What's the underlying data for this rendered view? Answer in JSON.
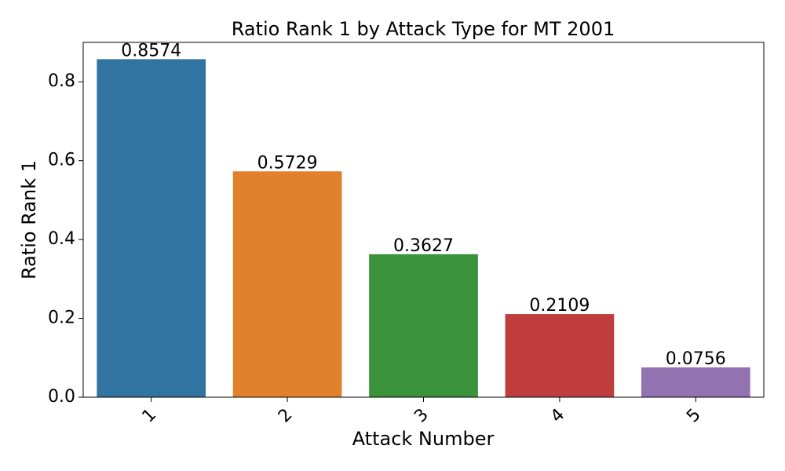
{
  "chart_data": {
    "type": "bar",
    "title": "Ratio Rank 1 by Attack Type for MT 2001",
    "xlabel": "Attack Number",
    "ylabel": "Ratio Rank 1",
    "categories": [
      "1",
      "2",
      "3",
      "4",
      "5"
    ],
    "values": [
      0.8574,
      0.5729,
      0.3627,
      0.2109,
      0.0756
    ],
    "value_labels": [
      "0.8574",
      "0.5729",
      "0.3627",
      "0.2109",
      "0.0756"
    ],
    "colors": [
      "#3274a1",
      "#e1812c",
      "#3a923a",
      "#c03d3e",
      "#9372b2"
    ],
    "ylim": [
      0,
      0.9
    ],
    "yticks": [
      0.0,
      0.2,
      0.4,
      0.6,
      0.8
    ],
    "ytick_labels": [
      "0.0",
      "0.2",
      "0.4",
      "0.6",
      "0.8"
    ],
    "xtick_rotation_deg": 45,
    "grid": false,
    "legend": "none"
  }
}
